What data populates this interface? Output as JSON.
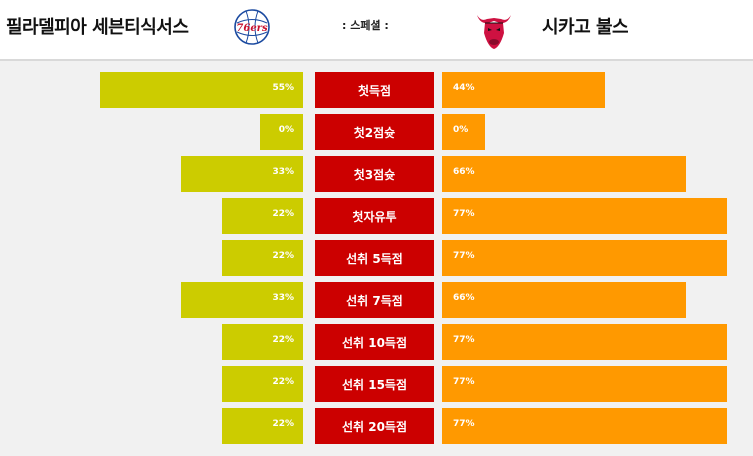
{
  "header": {
    "home_team": "필라델피아 세븐티식서스",
    "away_team": "시카고 불스",
    "special_label": ": 스페셜 :",
    "home_logo_text": "76ers",
    "home_logo_icon": "sixers-logo-icon",
    "away_logo_icon": "bulls-logo-icon"
  },
  "colors": {
    "home_bar": "#cccc00",
    "away_bar": "#ff9900",
    "category": "#cc0000"
  },
  "stats": [
    {
      "label": "첫득점",
      "home": 55,
      "away": 44,
      "home_text": "55%",
      "away_text": "44%"
    },
    {
      "label": "첫2점슛",
      "home": 0,
      "away": 0,
      "home_text": "0%",
      "away_text": "0%"
    },
    {
      "label": "첫3점슛",
      "home": 33,
      "away": 66,
      "home_text": "33%",
      "away_text": "66%"
    },
    {
      "label": "첫자유투",
      "home": 22,
      "away": 77,
      "home_text": "22%",
      "away_text": "77%"
    },
    {
      "label": "선취 5득점",
      "home": 22,
      "away": 77,
      "home_text": "22%",
      "away_text": "77%"
    },
    {
      "label": "선취 7득점",
      "home": 33,
      "away": 66,
      "home_text": "33%",
      "away_text": "66%"
    },
    {
      "label": "선취 10득점",
      "home": 22,
      "away": 77,
      "home_text": "22%",
      "away_text": "77%"
    },
    {
      "label": "선취 15득점",
      "home": 22,
      "away": 77,
      "home_text": "22%",
      "away_text": "77%"
    },
    {
      "label": "선취 20득점",
      "home": 22,
      "away": 77,
      "home_text": "22%",
      "away_text": "77%"
    }
  ]
}
